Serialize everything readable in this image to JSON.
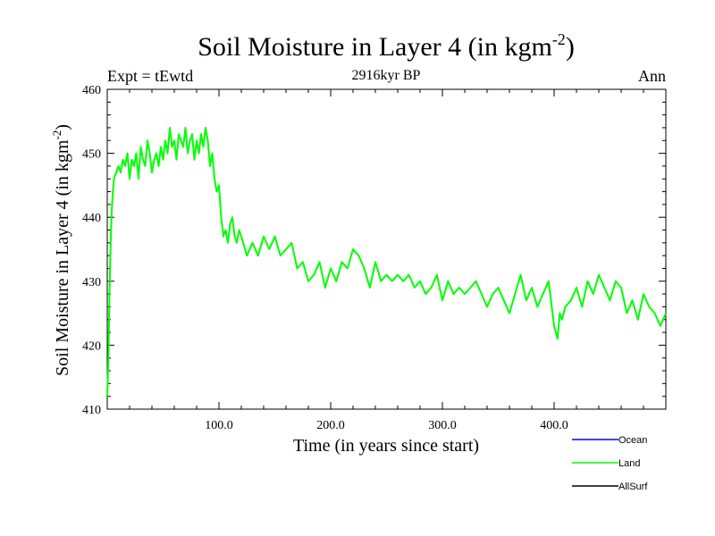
{
  "title_main": "Soil Moisture in Layer 4 (in kgm",
  "title_sup": "-2",
  "title_close": ")",
  "expt_label": "Expt = tEwtd",
  "period_label": "2916kyr BP",
  "season_label": "Ann",
  "colors": {
    "ocean": "#0000ff",
    "land": "#00ff00",
    "allsurf": "#000000",
    "axis": "#000000"
  },
  "chart_data": {
    "type": "line",
    "title": "Soil Moisture in Layer 4 (in kgm-2)",
    "xlabel": "Time (in years since start)",
    "ylabel_main": "Soil Moisture in Layer 4 (in kgm",
    "ylabel_sup": "-2",
    "ylabel_close": ")",
    "xlim": [
      0,
      500
    ],
    "ylim": [
      410,
      460
    ],
    "x_ticks": [
      {
        "value": 100,
        "label": "100.0"
      },
      {
        "value": 200,
        "label": "200.0"
      },
      {
        "value": 300,
        "label": "300.0"
      },
      {
        "value": 400,
        "label": "400.0"
      }
    ],
    "y_ticks": [
      {
        "value": 410,
        "label": "410"
      },
      {
        "value": 420,
        "label": "420"
      },
      {
        "value": 430,
        "label": "430"
      },
      {
        "value": 440,
        "label": "440"
      },
      {
        "value": 450,
        "label": "450"
      },
      {
        "value": 460,
        "label": "460"
      }
    ],
    "legend": [
      {
        "name": "Ocean",
        "color": "#0000ff"
      },
      {
        "name": "Land",
        "color": "#00ff00"
      },
      {
        "name": "AllSurf",
        "color": "#000000"
      }
    ],
    "series": [
      {
        "name": "Land",
        "color": "#00ff00",
        "x": [
          0,
          1,
          2,
          3,
          4,
          5,
          6,
          8,
          10,
          12,
          14,
          16,
          18,
          20,
          22,
          24,
          26,
          28,
          30,
          32,
          34,
          36,
          38,
          40,
          42,
          44,
          46,
          48,
          50,
          52,
          54,
          56,
          58,
          60,
          62,
          64,
          66,
          68,
          70,
          72,
          74,
          76,
          78,
          80,
          82,
          84,
          86,
          88,
          90,
          92,
          94,
          96,
          98,
          100,
          102,
          104,
          106,
          108,
          110,
          112,
          114,
          116,
          118,
          120,
          125,
          130,
          135,
          140,
          145,
          150,
          155,
          160,
          165,
          170,
          175,
          180,
          185,
          190,
          195,
          200,
          205,
          210,
          215,
          220,
          225,
          230,
          235,
          240,
          245,
          250,
          255,
          260,
          265,
          270,
          275,
          280,
          285,
          290,
          295,
          300,
          305,
          310,
          315,
          320,
          325,
          330,
          335,
          340,
          345,
          350,
          355,
          360,
          365,
          370,
          375,
          380,
          385,
          390,
          395,
          400,
          403,
          405,
          407,
          410,
          415,
          420,
          425,
          430,
          435,
          440,
          445,
          450,
          455,
          460,
          465,
          470,
          475,
          480,
          485,
          490,
          495,
          500
        ],
        "values": [
          412,
          418,
          428,
          436,
          441,
          444,
          446,
          447,
          448,
          447,
          449,
          448,
          450,
          446,
          449,
          448,
          450,
          446,
          451,
          449,
          448,
          452,
          450,
          447,
          449,
          450,
          448,
          451,
          449,
          452,
          450,
          454,
          451,
          452,
          449,
          453,
          452,
          451,
          454,
          450,
          452,
          453,
          449,
          452,
          450,
          453,
          451,
          454,
          452,
          448,
          450,
          446,
          444,
          445,
          440,
          437,
          438,
          436,
          439,
          440,
          437,
          436,
          438,
          437,
          434,
          436,
          434,
          437,
          435,
          437,
          434,
          435,
          436,
          432,
          433,
          430,
          431,
          433,
          429,
          432,
          430,
          433,
          432,
          435,
          434,
          432,
          429,
          433,
          430,
          431,
          430,
          431,
          430,
          431,
          429,
          430,
          428,
          429,
          431,
          427,
          430,
          428,
          429,
          428,
          429,
          430,
          428,
          426,
          428,
          429,
          427,
          425,
          428,
          431,
          427,
          429,
          426,
          428,
          430,
          423,
          421,
          425,
          424,
          426,
          427,
          429,
          426,
          430,
          428,
          431,
          429,
          427,
          430,
          429,
          425,
          427,
          424,
          428,
          426,
          425,
          423,
          425
        ]
      }
    ]
  }
}
